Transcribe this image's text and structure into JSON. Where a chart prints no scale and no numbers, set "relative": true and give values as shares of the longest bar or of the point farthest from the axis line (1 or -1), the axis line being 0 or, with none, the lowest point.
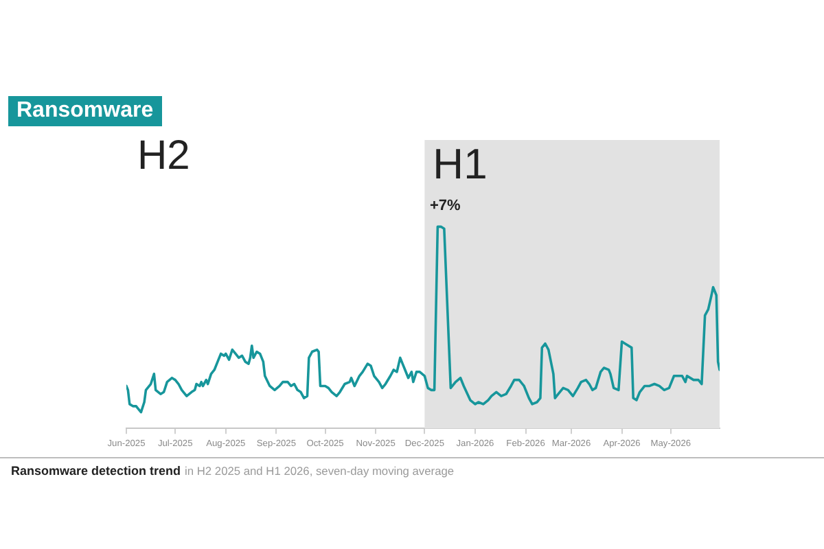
{
  "chart_data": {
    "type": "line",
    "title": "Ransomware",
    "relative": true,
    "color": "#17969b",
    "x": [
      "2025-06-01",
      "2025-06-02",
      "2025-06-03",
      "2025-06-05",
      "2025-06-07",
      "2025-06-08",
      "2025-06-10",
      "2025-06-12",
      "2025-06-13",
      "2025-06-16",
      "2025-06-18",
      "2025-06-19",
      "2025-06-22",
      "2025-06-24",
      "2025-06-26",
      "2025-06-29",
      "2025-07-01",
      "2025-07-03",
      "2025-07-05",
      "2025-07-08",
      "2025-07-11",
      "2025-07-13",
      "2025-07-14",
      "2025-07-16",
      "2025-07-17",
      "2025-07-18",
      "2025-07-20",
      "2025-07-21",
      "2025-07-23",
      "2025-07-25",
      "2025-07-27",
      "2025-07-29",
      "2025-07-31",
      "2025-08-01",
      "2025-08-03",
      "2025-08-05",
      "2025-08-07",
      "2025-08-09",
      "2025-08-11",
      "2025-08-13",
      "2025-08-15",
      "2025-08-16",
      "2025-08-17",
      "2025-08-18",
      "2025-08-20",
      "2025-08-22",
      "2025-08-24",
      "2025-08-25",
      "2025-08-28",
      "2025-08-31",
      "2025-09-03",
      "2025-09-05",
      "2025-09-08",
      "2025-09-10",
      "2025-09-12",
      "2025-09-14",
      "2025-09-16",
      "2025-09-18",
      "2025-09-20",
      "2025-09-21",
      "2025-09-23",
      "2025-09-26",
      "2025-09-27",
      "2025-09-28",
      "2025-10-01",
      "2025-10-03",
      "2025-10-05",
      "2025-10-08",
      "2025-10-10",
      "2025-10-13",
      "2025-10-16",
      "2025-10-17",
      "2025-10-19",
      "2025-10-22",
      "2025-10-24",
      "2025-10-27",
      "2025-10-29",
      "2025-10-31",
      "2025-11-03",
      "2025-11-05",
      "2025-11-07",
      "2025-11-10",
      "2025-11-12",
      "2025-11-14",
      "2025-11-16",
      "2025-11-18",
      "2025-11-19",
      "2025-11-21",
      "2025-11-23",
      "2025-11-24",
      "2025-11-26",
      "2025-11-28",
      "2025-12-01",
      "2025-12-03",
      "2025-12-05",
      "2025-12-07",
      "2025-12-09",
      "2025-12-11",
      "2025-12-13",
      "2025-12-17",
      "2025-12-20",
      "2025-12-23",
      "2025-12-25",
      "2025-12-29",
      "2026-01-01",
      "2026-01-03",
      "2026-01-06",
      "2026-01-09",
      "2026-01-11",
      "2026-01-14",
      "2026-01-17",
      "2026-01-20",
      "2026-01-23",
      "2026-01-25",
      "2026-01-28",
      "2026-01-31",
      "2026-02-03",
      "2026-02-05",
      "2026-02-08",
      "2026-02-10",
      "2026-02-11",
      "2026-02-13",
      "2026-02-15",
      "2026-02-18",
      "2026-02-19",
      "2026-02-21",
      "2026-02-24",
      "2026-02-27",
      "2026-03-02",
      "2026-03-05",
      "2026-03-07",
      "2026-03-10",
      "2026-03-12",
      "2026-03-14",
      "2026-03-16",
      "2026-03-19",
      "2026-03-21",
      "2026-03-24",
      "2026-03-25",
      "2026-03-27",
      "2026-03-30",
      "2026-04-01",
      "2026-04-03",
      "2026-04-07",
      "2026-04-08",
      "2026-04-10",
      "2026-04-12",
      "2026-04-15",
      "2026-04-18",
      "2026-04-21",
      "2026-04-24",
      "2026-04-27",
      "2026-04-30",
      "2026-05-03",
      "2026-05-06",
      "2026-05-08",
      "2026-05-10",
      "2026-05-11",
      "2026-05-15",
      "2026-05-18",
      "2026-05-20",
      "2026-05-22",
      "2026-05-24",
      "2026-05-26",
      "2026-05-27",
      "2026-05-29",
      "2026-05-30",
      "2026-05-31"
    ],
    "values": [
      0.21,
      0.19,
      0.12,
      0.11,
      0.11,
      0.1,
      0.08,
      0.13,
      0.19,
      0.22,
      0.27,
      0.19,
      0.17,
      0.18,
      0.23,
      0.25,
      0.24,
      0.22,
      0.19,
      0.16,
      0.18,
      0.19,
      0.22,
      0.21,
      0.23,
      0.21,
      0.24,
      0.22,
      0.27,
      0.29,
      0.33,
      0.37,
      0.36,
      0.37,
      0.34,
      0.39,
      0.37,
      0.35,
      0.36,
      0.33,
      0.32,
      0.35,
      0.41,
      0.35,
      0.38,
      0.37,
      0.33,
      0.26,
      0.21,
      0.19,
      0.21,
      0.23,
      0.23,
      0.21,
      0.22,
      0.19,
      0.18,
      0.15,
      0.16,
      0.35,
      0.38,
      0.39,
      0.38,
      0.21,
      0.21,
      0.2,
      0.18,
      0.16,
      0.18,
      0.22,
      0.23,
      0.25,
      0.21,
      0.26,
      0.28,
      0.32,
      0.31,
      0.26,
      0.23,
      0.2,
      0.22,
      0.26,
      0.29,
      0.28,
      0.35,
      0.31,
      0.29,
      0.25,
      0.28,
      0.23,
      0.28,
      0.28,
      0.26,
      0.2,
      0.19,
      0.19,
      1.0,
      1.0,
      0.99,
      0.2,
      0.23,
      0.25,
      0.21,
      0.14,
      0.12,
      0.13,
      0.12,
      0.14,
      0.16,
      0.18,
      0.16,
      0.17,
      0.21,
      0.24,
      0.24,
      0.21,
      0.15,
      0.12,
      0.13,
      0.15,
      0.4,
      0.42,
      0.39,
      0.27,
      0.15,
      0.17,
      0.2,
      0.19,
      0.16,
      0.2,
      0.23,
      0.24,
      0.22,
      0.19,
      0.2,
      0.28,
      0.3,
      0.29,
      0.27,
      0.2,
      0.19,
      0.43,
      0.42,
      0.4,
      0.15,
      0.14,
      0.18,
      0.21,
      0.21,
      0.22,
      0.21,
      0.19,
      0.2,
      0.26,
      0.26,
      0.26,
      0.23,
      0.26,
      0.24,
      0.24,
      0.22,
      0.56,
      0.59,
      0.66,
      0.7,
      0.66,
      0.33,
      0.29
    ],
    "xlim": [
      "2025-06-01",
      "2026-05-31"
    ],
    "xticks": [
      {
        "value": "2025-06-01",
        "label": "Jun-2025"
      },
      {
        "value": "2025-07-01",
        "label": "Jul-2025"
      },
      {
        "value": "2025-08-01",
        "label": "Aug-2025"
      },
      {
        "value": "2025-09-01",
        "label": "Sep-2025"
      },
      {
        "value": "2025-10-01",
        "label": "Oct-2025"
      },
      {
        "value": "2025-11-01",
        "label": "Nov-2025"
      },
      {
        "value": "2025-12-01",
        "label": "Dec-2025"
      },
      {
        "value": "2026-01-01",
        "label": "Jan-2026"
      },
      {
        "value": "2026-02-01",
        "label": "Feb-2026"
      },
      {
        "value": "2026-03-01",
        "label": "Mar-2026"
      },
      {
        "value": "2026-04-01",
        "label": "Apr-2026"
      },
      {
        "value": "2026-05-01",
        "label": "May-2026"
      }
    ],
    "bands": [
      {
        "axis": "x",
        "from": "2025-12-01",
        "to": "2026-05-31",
        "label": "H1",
        "color": "#e2e2e2"
      }
    ],
    "annotations": [
      "H2",
      "+7%",
      "Ransomware detection trend",
      "in H2 2025 and H1 2026, seven-day moving average"
    ],
    "legend": false
  }
}
